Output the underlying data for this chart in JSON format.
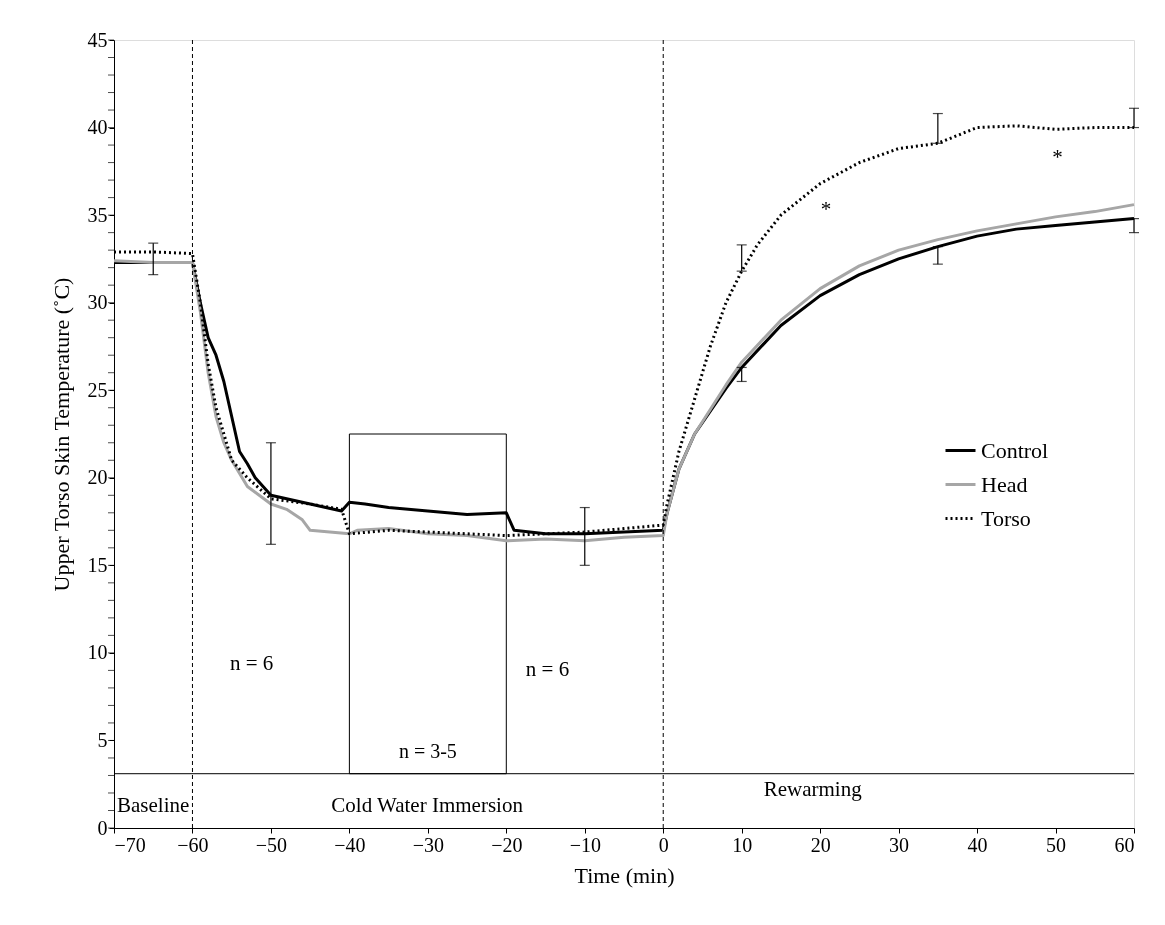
{
  "chart_data": {
    "type": "line",
    "xlabel": "Time (min)",
    "ylabel": "Upper Torso Skin Temperature (˚C)",
    "xlim": [
      -70,
      60
    ],
    "xticks": [
      -70,
      -60,
      -50,
      -40,
      -30,
      -20,
      -10,
      0,
      10,
      20,
      30,
      40,
      50,
      60
    ],
    "ylim": [
      0,
      45
    ],
    "yticks": [
      0,
      5,
      10,
      15,
      20,
      25,
      30,
      35,
      40,
      45
    ],
    "legend": "right",
    "grid": false,
    "series": [
      {
        "name": "Control",
        "color": "#000000",
        "line_style": "solid",
        "x": [
          -70,
          -65,
          -60,
          -59,
          -58,
          -57,
          -56,
          -55,
          -54,
          -53,
          -52,
          -50,
          -45,
          -41,
          -40,
          -38,
          -35,
          -30,
          -25,
          -20,
          -19,
          -15,
          -10,
          -5,
          0,
          0.5,
          2,
          4,
          6,
          8,
          10,
          15,
          20,
          25,
          30,
          35,
          40,
          45,
          50,
          55,
          60
        ],
        "values": [
          32.3,
          32.3,
          32.3,
          30,
          28,
          27,
          25.5,
          23.5,
          21.5,
          20.8,
          20,
          19,
          18.5,
          18.1,
          18.6,
          18.5,
          18.3,
          18.1,
          17.9,
          18,
          17,
          16.8,
          16.8,
          16.9,
          17,
          18,
          20.5,
          22.5,
          23.8,
          25.1,
          26.3,
          28.7,
          30.4,
          31.6,
          32.5,
          33.2,
          33.8,
          34.2,
          34.4,
          34.6,
          34.8
        ],
        "errors": [
          null,
          [
            31.6,
            33.4
          ],
          null,
          null,
          null,
          null,
          null,
          null,
          null,
          null,
          null,
          [
            16.2,
            22
          ],
          null,
          null,
          null,
          null,
          null,
          null,
          null,
          null,
          null,
          null,
          null,
          null,
          null,
          null,
          null,
          null,
          null,
          null,
          [
            25.5,
            26.3
          ],
          null,
          null,
          null,
          null,
          [
            32.2,
            33.2
          ],
          null,
          null,
          null,
          null,
          [
            34,
            34.8
          ]
        ]
      },
      {
        "name": "Head",
        "color": "#a6a6a6",
        "line_style": "solid",
        "x": [
          -70,
          -65,
          -60,
          -59,
          -58,
          -57,
          -56,
          -55,
          -53,
          -50,
          -48,
          -46,
          -45,
          -40,
          -39,
          -35,
          -30,
          -25,
          -20,
          -15,
          -10,
          -5,
          0,
          0.5,
          2,
          4,
          6,
          8,
          10,
          15,
          20,
          25,
          30,
          35,
          40,
          45,
          50,
          55,
          60
        ],
        "values": [
          32.4,
          32.3,
          32.3,
          29.5,
          26,
          23.5,
          22,
          21,
          19.5,
          18.5,
          18.2,
          17.6,
          17,
          16.8,
          17,
          17.1,
          16.8,
          16.7,
          16.4,
          16.5,
          16.4,
          16.6,
          16.7,
          18,
          20.5,
          22.5,
          23.9,
          25.3,
          26.6,
          29,
          30.8,
          32.1,
          33,
          33.6,
          34.1,
          34.5,
          34.9,
          35.2,
          35.6
        ],
        "errors": [
          null,
          null,
          null,
          null,
          null,
          null,
          null,
          null,
          null,
          null,
          null,
          null,
          null,
          null,
          null,
          null,
          null,
          null,
          null,
          null,
          [
            15,
            18.3
          ],
          null,
          null,
          null,
          null,
          null,
          null,
          null,
          null,
          null,
          null,
          null,
          null,
          null,
          null,
          null,
          null,
          null,
          null
        ]
      },
      {
        "name": "Torso",
        "color": "#000000",
        "line_style": "dotted",
        "x": [
          -70,
          -65,
          -60,
          -59,
          -58,
          -57,
          -56,
          -55,
          -53,
          -50,
          -45,
          -41,
          -40,
          -35,
          -30,
          -25,
          -20,
          -15,
          -10,
          -5,
          0,
          0.5,
          2,
          4,
          6,
          8,
          10,
          12,
          15,
          20,
          25,
          30,
          35,
          40,
          45,
          50,
          55,
          60
        ],
        "values": [
          32.9,
          32.9,
          32.8,
          30,
          26.5,
          24,
          22.5,
          21,
          20,
          18.8,
          18.5,
          18.2,
          16.8,
          17,
          16.9,
          16.8,
          16.7,
          16.8,
          16.9,
          17.1,
          17.3,
          18.5,
          21.5,
          24.5,
          27.5,
          30,
          31.8,
          33.3,
          35,
          36.8,
          38,
          38.8,
          39.1,
          40,
          40.1,
          39.9,
          40,
          40
        ],
        "errors": [
          null,
          null,
          null,
          null,
          null,
          null,
          null,
          null,
          null,
          null,
          null,
          null,
          null,
          null,
          null,
          null,
          null,
          null,
          null,
          null,
          null,
          null,
          null,
          null,
          null,
          null,
          [
            31.8,
            33.3
          ],
          null,
          null,
          null,
          null,
          null,
          [
            39.1,
            40.8
          ],
          null,
          null,
          null,
          null,
          [
            40,
            41.1
          ]
        ]
      }
    ],
    "ref_lines": [
      {
        "axis": "x",
        "value": -60,
        "line_style": "dashed",
        "color": "#000000"
      },
      {
        "axis": "x",
        "value": 0,
        "line_style": "dashed",
        "color": "#000000"
      },
      {
        "axis": "y",
        "value": 3.1,
        "line_style": "solid",
        "color": "#000000"
      }
    ],
    "bands": [
      {
        "axis": "x",
        "from": -40,
        "to": -20,
        "label": "n = 3-5",
        "color": "#ffffff"
      }
    ],
    "annotations": [
      "*",
      "*",
      "n = 6",
      "n = 6",
      "Baseline",
      "Cold Water Immersion",
      "Rewarming"
    ]
  }
}
